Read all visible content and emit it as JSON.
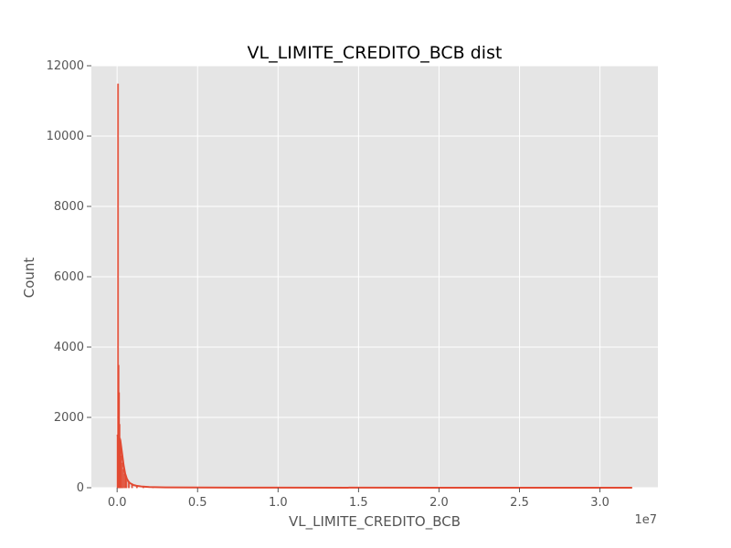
{
  "chart_data": {
    "type": "histogram",
    "title": "VL_LIMITE_CREDITO_BCB dist",
    "xlabel": "VL_LIMITE_CREDITO_BCB",
    "ylabel": "Count",
    "x_offset_label": "1e7",
    "xlim": [
      -1600000,
      33600000
    ],
    "ylim": [
      0,
      12000
    ],
    "x_ticks": [
      0,
      5000000,
      10000000,
      15000000,
      20000000,
      25000000,
      30000000
    ],
    "x_tick_labels": [
      "0.0",
      "0.5",
      "1.0",
      "1.5",
      "2.0",
      "2.5",
      "3.0"
    ],
    "y_ticks": [
      0,
      2000,
      4000,
      6000,
      8000,
      10000,
      12000
    ],
    "y_tick_labels": [
      "0",
      "2000",
      "4000",
      "6000",
      "8000",
      "10000",
      "12000"
    ],
    "grid": true,
    "legend": false,
    "colors": {
      "bars": "#E24A33",
      "kde": "#E24A33",
      "axes_bg": "#E5E5E5",
      "grid": "#FFFFFF",
      "text": "#555555"
    },
    "bars": [
      {
        "x": 0,
        "count": 1500
      },
      {
        "x": 30000,
        "count": 11480
      },
      {
        "x": 60000,
        "count": 3480
      },
      {
        "x": 90000,
        "count": 2700
      },
      {
        "x": 120000,
        "count": 1800
      },
      {
        "x": 150000,
        "count": 1400
      },
      {
        "x": 180000,
        "count": 1200
      },
      {
        "x": 220000,
        "count": 900
      },
      {
        "x": 280000,
        "count": 700
      },
      {
        "x": 350000,
        "count": 520
      },
      {
        "x": 450000,
        "count": 380
      },
      {
        "x": 550000,
        "count": 260
      },
      {
        "x": 700000,
        "count": 160
      },
      {
        "x": 900000,
        "count": 90
      },
      {
        "x": 1200000,
        "count": 50
      },
      {
        "x": 1600000,
        "count": 25
      },
      {
        "x": 2200000,
        "count": 12
      },
      {
        "x": 3000000,
        "count": 6
      }
    ],
    "bin_width": 30000,
    "kde": {
      "x": [
        0,
        100000,
        200000,
        300000,
        400000,
        500000,
        600000,
        700000,
        800000,
        1000000,
        1200000,
        1500000,
        2000000,
        3000000,
        5000000,
        10000000,
        20000000,
        32000000
      ],
      "y": [
        1500,
        1450,
        1350,
        1000,
        650,
        400,
        260,
        180,
        130,
        80,
        55,
        35,
        20,
        10,
        5,
        2,
        1,
        0
      ]
    }
  }
}
